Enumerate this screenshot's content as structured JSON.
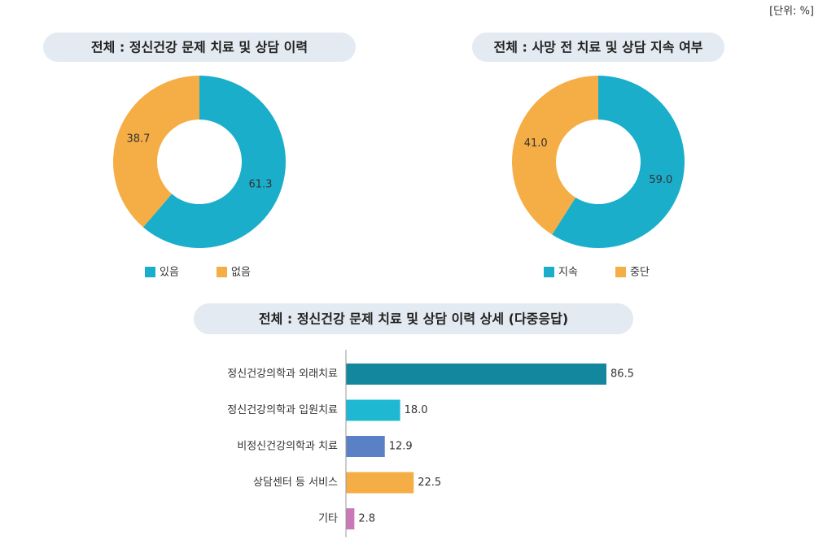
{
  "unit": "[단위: %]",
  "chart_data": [
    {
      "type": "pie",
      "title": "전체 : 정신건강 문제 치료 및 상담 이력",
      "categories": [
        "있음",
        "없음"
      ],
      "values": [
        61.3,
        38.7
      ],
      "colors": [
        "#1aaecb",
        "#f5ad45"
      ]
    },
    {
      "type": "pie",
      "title": "전체 : 사망 전 치료 및 상담 지속 여부",
      "categories": [
        "지속",
        "중단"
      ],
      "values": [
        59.0,
        41.0
      ],
      "value_labels": [
        "59.0",
        "41.0"
      ],
      "colors": [
        "#1aaecb",
        "#f5ad45"
      ]
    },
    {
      "type": "bar",
      "orientation": "horizontal",
      "title": "전체 : 정신건강 문제 치료 및 상담 이력 상세 (다중응답)",
      "categories": [
        "정신건강의학과 외래치료",
        "정신건강의학과 입원치료",
        "비정신건강의학과 치료",
        "상담센터 등 서비스",
        "기타"
      ],
      "values": [
        86.5,
        18.0,
        12.9,
        22.5,
        2.8
      ],
      "value_labels": [
        "86.5",
        "18.0",
        "12.9",
        "22.5",
        "2.8"
      ],
      "colors": [
        "#13879e",
        "#1fb8d3",
        "#5a80c6",
        "#f5ad45",
        "#c978b8"
      ]
    }
  ]
}
